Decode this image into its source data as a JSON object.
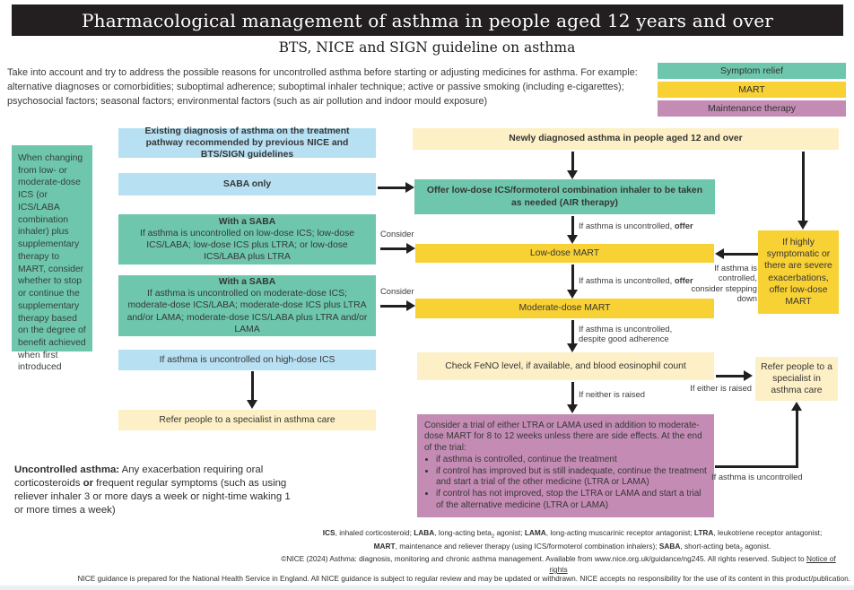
{
  "header": {
    "title": "Pharmacological management of asthma in people aged 12 years and over",
    "subtitle": "BTS, NICE and SIGN guideline on asthma"
  },
  "intro": "Take into account and try to address the possible reasons for uncontrolled asthma before starting or adjusting medicines for asthma. For example: alternative diagnoses or comorbidities; suboptimal adherence; suboptimal inhaler technique; active or passive smoking (including e-cigarettes); psychosocial factors; seasonal factors; environmental factors (such as air pollution and indoor mould exposure)",
  "legend": {
    "items": [
      {
        "label": "Symptom relief",
        "color": "#6ec7ac"
      },
      {
        "label": "MART",
        "color": "#f8d134"
      },
      {
        "label": "Maintenance therapy",
        "color": "#c48cb4"
      }
    ]
  },
  "side_note": "When changing from low- or moderate-dose ICS (or ICS/LABA combination inhaler) plus supplementary therapy to MART, consider whether to stop or continue the supplementary therapy based on the degree of benefit achieved when first introduced",
  "existing_pathway": {
    "header_box": "Existing diagnosis of asthma on the treatment pathway recommended by previous NICE and BTS/SIGN guidelines",
    "saba_only": "SABA only",
    "with_saba_low": {
      "title": "With a SABA",
      "body": "If asthma is uncontrolled on low-dose ICS; low-dose ICS/LABA; low-dose ICS plus LTRA; or low-dose ICS/LABA plus LTRA"
    },
    "with_saba_moderate": {
      "title": "With a SABA",
      "body": "If asthma is uncontrolled on moderate-dose ICS; moderate-dose ICS/LABA; moderate-dose ICS plus LTRA and/or LAMA; moderate-dose ICS/LABA plus LTRA and/or LAMA"
    },
    "high_dose": "If asthma is uncontrolled on high-dose ICS",
    "refer": "Refer people to a specialist in asthma care",
    "consider1": "Consider",
    "consider2": "Consider"
  },
  "new_pathway": {
    "header_box": "Newly diagnosed asthma in people aged 12 and over",
    "air": "Offer low-dose ICS/formoterol combination inhaler to be taken as needed (AIR therapy)",
    "low_mart": "Low-dose MART",
    "moderate_mart": "Moderate-dose MART",
    "check_feno": "Check FeNO level, if available, and blood eosinophil count",
    "trial_intro": "Consider a trial of either LTRA or LAMA used in addition to moderate-dose MART for 8 to 12 weeks unless there are side effects. At the end of the trial:",
    "trial_bullets": [
      "if asthma is controlled, continue the treatment",
      "if control has improved but is still inadequate, continue the treatment and start a trial of the other medicine (LTRA or LAMA)",
      "if control has not improved, stop the LTRA or LAMA and start a trial of the alternative medicine (LTRA or LAMA)"
    ]
  },
  "right_pathway": {
    "highly_symptomatic": "If highly symptomatic or there are severe exacerbations, offer low-dose MART",
    "refer_specialist": "Refer people to a specialist in asthma care"
  },
  "arrow_labels": {
    "uncontrolled_offer_pre": "If asthma is uncontrolled, ",
    "uncontrolled_offer_bold": "offer",
    "uncontrolled_adherence": "If asthma is uncontrolled,\ndespite good adherence",
    "controlled_stepping": "If asthma is controlled, consider stepping down",
    "either_raised": "If either is raised",
    "neither_raised": "If neither is raised",
    "asthma_uncontrolled": "If asthma is uncontrolled"
  },
  "definition_runs": [
    {
      "t": "Uncontrolled asthma:",
      "b": true
    },
    {
      "t": " Any exacerbation requiring oral corticosteroids "
    },
    {
      "t": "or",
      "b": true
    },
    {
      "t": " frequent regular symptoms (such as using reliever inhaler 3 or more days a week or night-time waking 1 or more times a week)"
    }
  ],
  "footnotes": {
    "abbr_line1_runs": [
      {
        "t": "ICS",
        "b": true
      },
      {
        "t": ", inhaled corticosteroid; "
      },
      {
        "t": "LABA",
        "b": true
      },
      {
        "t": ", long-acting beta"
      },
      {
        "t": "2",
        "sub": true
      },
      {
        "t": " agonist; "
      },
      {
        "t": "LAMA",
        "b": true
      },
      {
        "t": ", long-acting muscarinic receptor antagonist; "
      },
      {
        "t": "LTRA",
        "b": true
      },
      {
        "t": ", leukotriene receptor antagonist;"
      }
    ],
    "abbr_line2_runs": [
      {
        "t": "MART",
        "b": true
      },
      {
        "t": ", maintenance and reliever therapy (using ICS/formoterol combination inhalers); "
      },
      {
        "t": "SABA",
        "b": true
      },
      {
        "t": ", short-acting beta"
      },
      {
        "t": "2",
        "sub": true
      },
      {
        "t": " agonist."
      }
    ],
    "copyright_pre": "©NICE (2024) Asthma: diagnosis, monitoring and chronic asthma management. Available from www.nice.org.uk/guidance/ng245. All rights reserved. Subject to ",
    "notice_link": "Notice of rights",
    "disclaimer": "NICE guidance is prepared for the National Health Service in England. All NICE guidance is subject to regular review and may be updated or withdrawn. NICE accepts no responsibility for the use of its content in this product/publication."
  },
  "colors": {
    "header_bg": "#231f20",
    "symptom_relief": "#6ec7ac",
    "mart": "#f8d134",
    "maintenance": "#c48cb4",
    "info_blue": "#b7e0f2",
    "pale_yellow": "#fdf0c6",
    "arrow": "#231f20",
    "text": "#3c3c3b"
  }
}
